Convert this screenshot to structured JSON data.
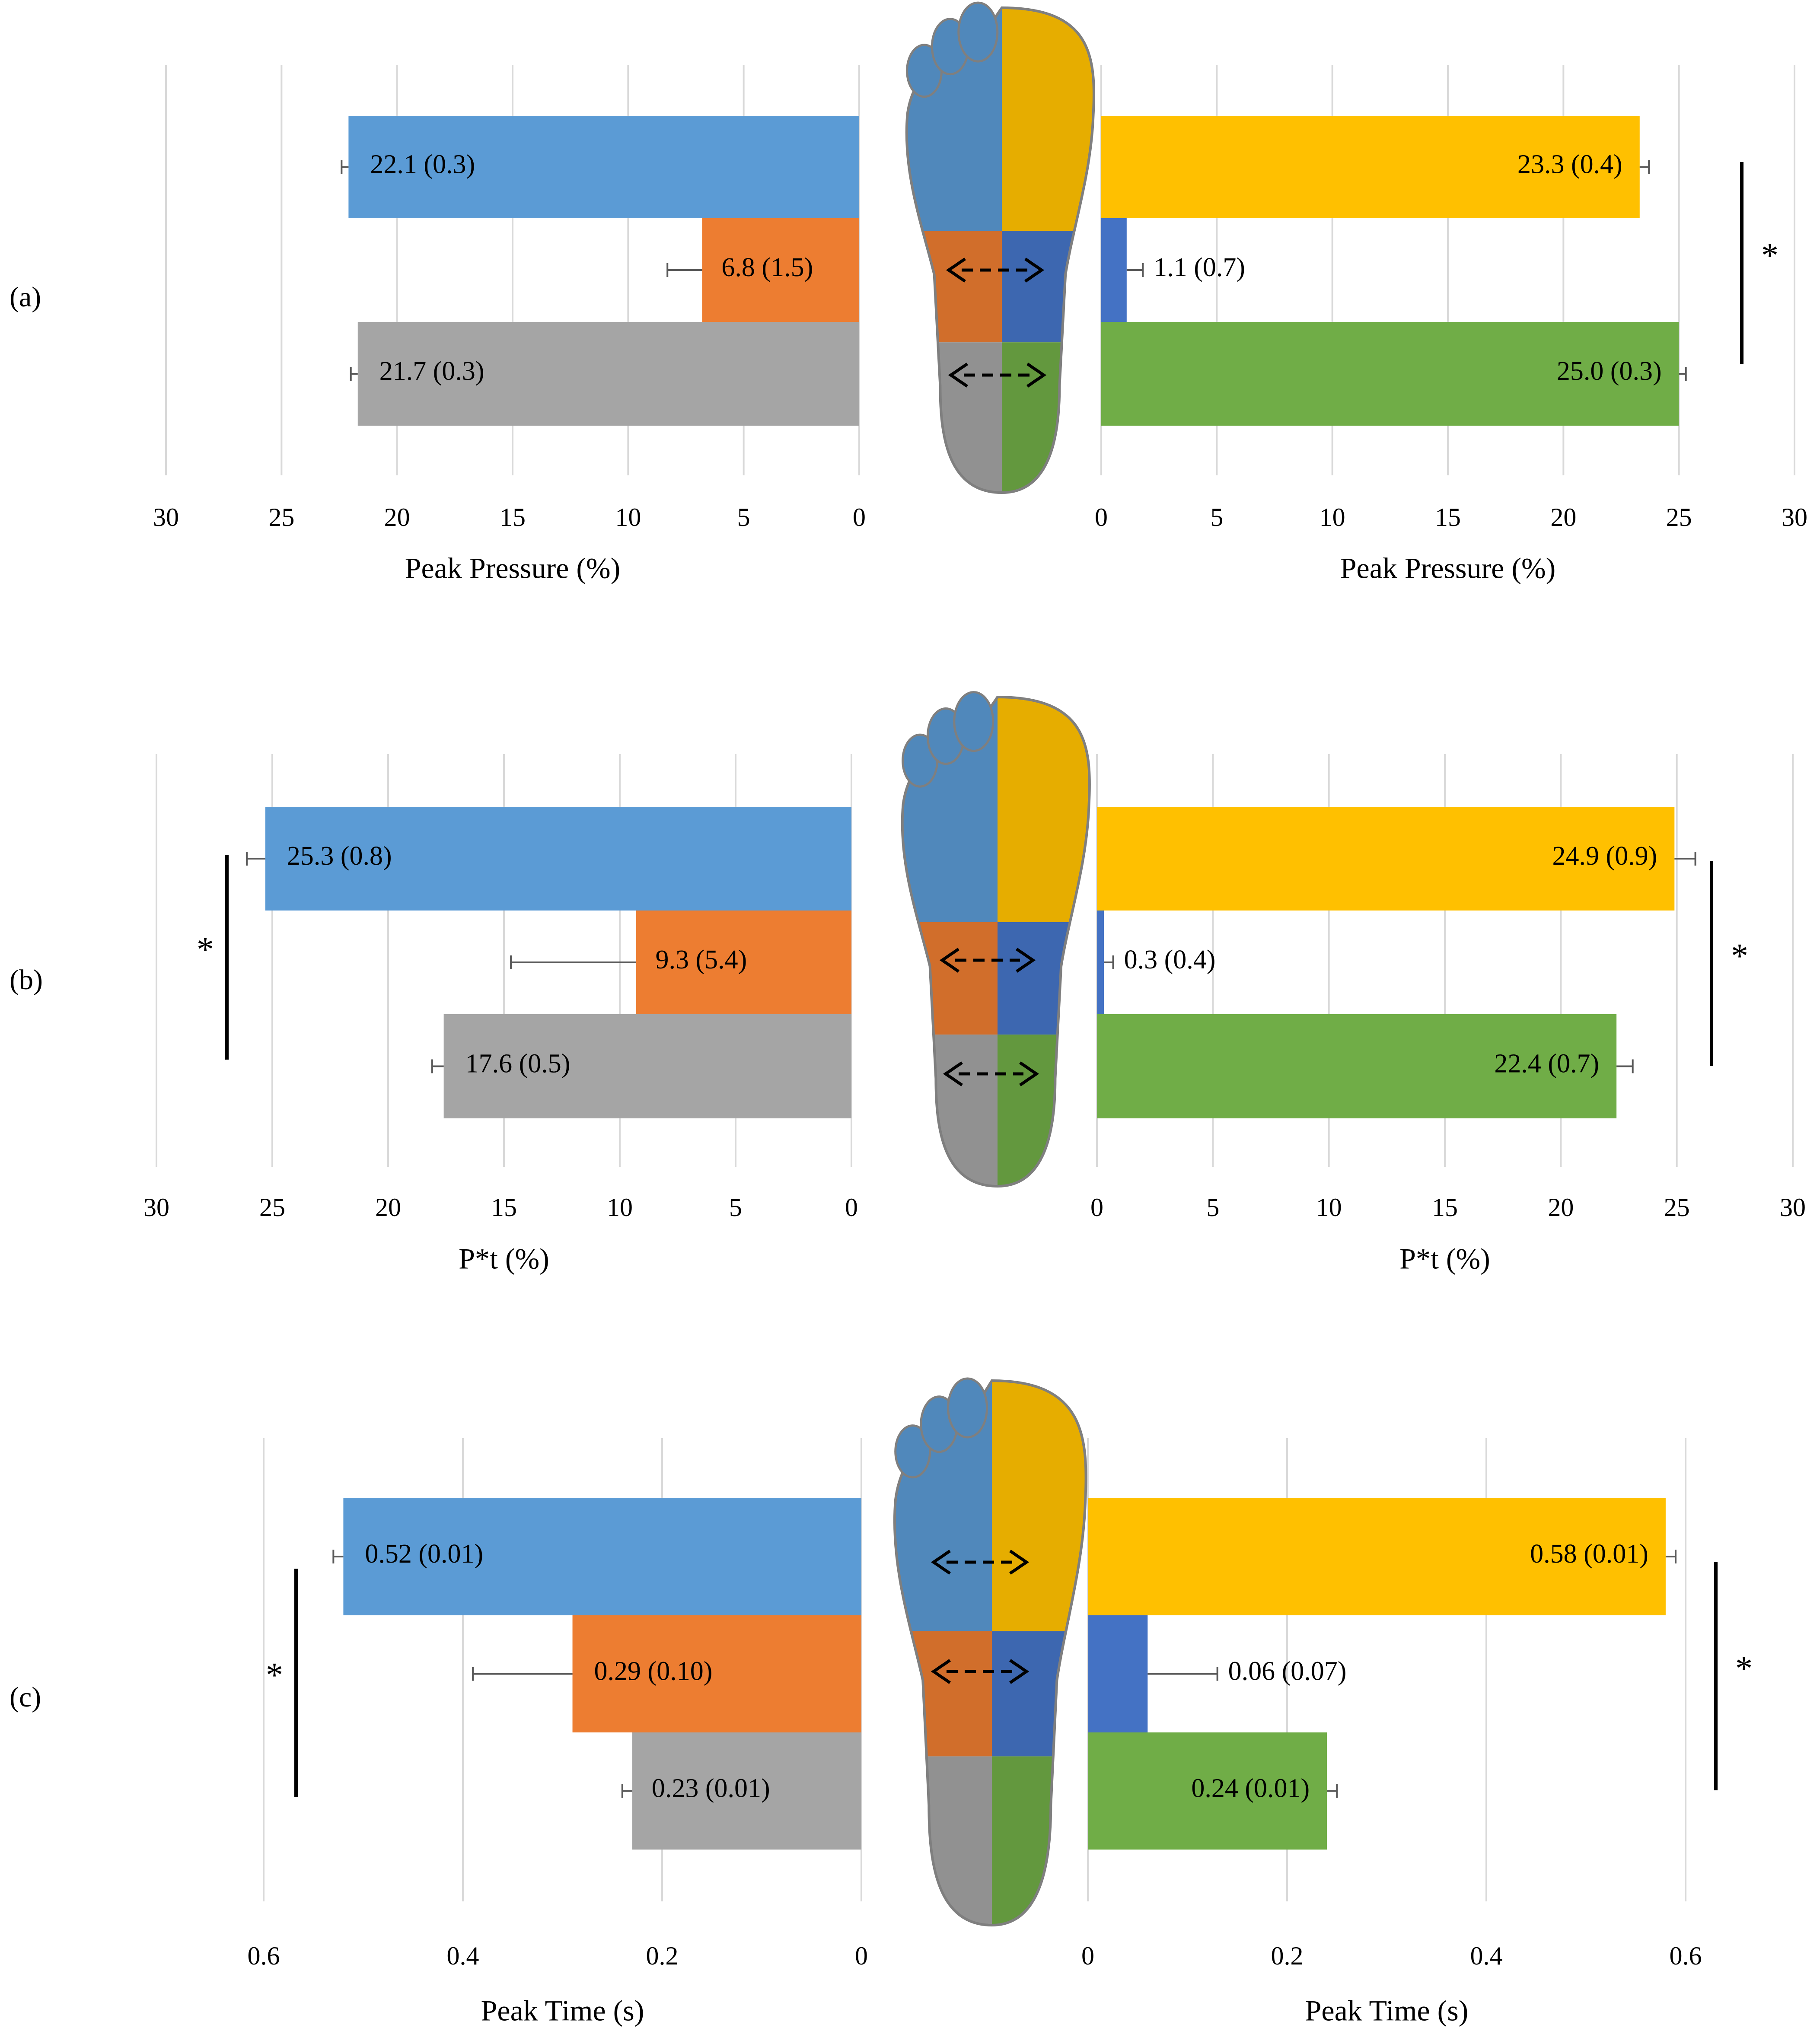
{
  "panel_labels": [
    "(a)",
    "(b)",
    "(c)"
  ],
  "colors": {
    "forefoot_medial": "#5B9BD5",
    "midfoot_medial": "#ED7D31",
    "rearfoot_medial": "#A5A5A5",
    "forefoot_lateral": "#FFC000",
    "midfoot_lateral": "#4472C4",
    "rearfoot_lateral": "#70AD47",
    "grid": "#D9D9D9",
    "text": "#000000"
  },
  "icons": [
    "foot-pressure-map-icon",
    "comparison-arrow-icon"
  ],
  "chart_data": [
    {
      "type": "bar",
      "orientation": "horizontal",
      "panel": "(a)",
      "side": "left",
      "xlabel": "Peak Pressure (%)",
      "xlim": [
        0,
        30
      ],
      "x_reversed": true,
      "ticks": [
        0,
        5,
        10,
        15,
        20,
        25,
        30
      ],
      "grid": true,
      "values": [
        22.1,
        6.8,
        21.7
      ],
      "errors": [
        0.3,
        1.5,
        0.3
      ],
      "labels": [
        "22.1 (0.3)",
        "6.8 (1.5)",
        "21.7 (0.3)"
      ],
      "colors": [
        "#5B9BD5",
        "#ED7D31",
        "#A5A5A5"
      ],
      "significance": null
    },
    {
      "type": "bar",
      "orientation": "horizontal",
      "panel": "(a)",
      "side": "right",
      "xlabel": "Peak Pressure (%)",
      "xlim": [
        0,
        30
      ],
      "x_reversed": false,
      "ticks": [
        0,
        5,
        10,
        15,
        20,
        25,
        30
      ],
      "grid": true,
      "values": [
        23.3,
        1.1,
        25.0
      ],
      "errors": [
        0.4,
        0.7,
        0.3
      ],
      "labels": [
        "23.3 (0.4)",
        "1.1 (0.7)",
        "25.0 (0.3)"
      ],
      "colors": [
        "#FFC000",
        "#4472C4",
        "#70AD47"
      ],
      "significance": "*"
    },
    {
      "type": "bar",
      "orientation": "horizontal",
      "panel": "(b)",
      "side": "left",
      "xlabel": "P*t (%)",
      "xlim": [
        0,
        30
      ],
      "x_reversed": true,
      "ticks": [
        0,
        5,
        10,
        15,
        20,
        25,
        30
      ],
      "grid": true,
      "values": [
        25.3,
        9.3,
        17.6
      ],
      "errors": [
        0.8,
        5.4,
        0.5
      ],
      "labels": [
        "25.3 (0.8)",
        "9.3 (5.4)",
        "17.6 (0.5)"
      ],
      "colors": [
        "#5B9BD5",
        "#ED7D31",
        "#A5A5A5"
      ],
      "significance": "*"
    },
    {
      "type": "bar",
      "orientation": "horizontal",
      "panel": "(b)",
      "side": "right",
      "xlabel": "P*t (%)",
      "xlim": [
        0,
        30
      ],
      "x_reversed": false,
      "ticks": [
        0,
        5,
        10,
        15,
        20,
        25,
        30
      ],
      "grid": true,
      "values": [
        24.9,
        0.3,
        22.4
      ],
      "errors": [
        0.9,
        0.4,
        0.7
      ],
      "labels": [
        "24.9 (0.9)",
        "0.3 (0.4)",
        "22.4 (0.7)"
      ],
      "colors": [
        "#FFC000",
        "#4472C4",
        "#70AD47"
      ],
      "significance": "*"
    },
    {
      "type": "bar",
      "orientation": "horizontal",
      "panel": "(c)",
      "side": "left",
      "xlabel": "Peak Time (s)",
      "xlim": [
        0,
        0.6
      ],
      "x_reversed": true,
      "ticks": [
        0,
        0.2,
        0.4,
        0.6
      ],
      "grid": true,
      "values": [
        0.52,
        0.29,
        0.23
      ],
      "errors": [
        0.01,
        0.1,
        0.01
      ],
      "labels": [
        "0.52 (0.01)",
        "0.29 (0.10)",
        "0.23 (0.01)"
      ],
      "colors": [
        "#5B9BD5",
        "#ED7D31",
        "#A5A5A5"
      ],
      "significance": "*"
    },
    {
      "type": "bar",
      "orientation": "horizontal",
      "panel": "(c)",
      "side": "right",
      "xlabel": "Peak Time (s)",
      "xlim": [
        0,
        0.6
      ],
      "x_reversed": false,
      "ticks": [
        0,
        0.2,
        0.4,
        0.6
      ],
      "grid": true,
      "values": [
        0.58,
        0.06,
        0.24
      ],
      "errors": [
        0.01,
        0.07,
        0.01
      ],
      "labels": [
        "0.58 (0.01)",
        "0.06 (0.07)",
        "0.24 (0.01)"
      ],
      "colors": [
        "#FFC000",
        "#4472C4",
        "#70AD47"
      ],
      "significance": "*"
    }
  ]
}
